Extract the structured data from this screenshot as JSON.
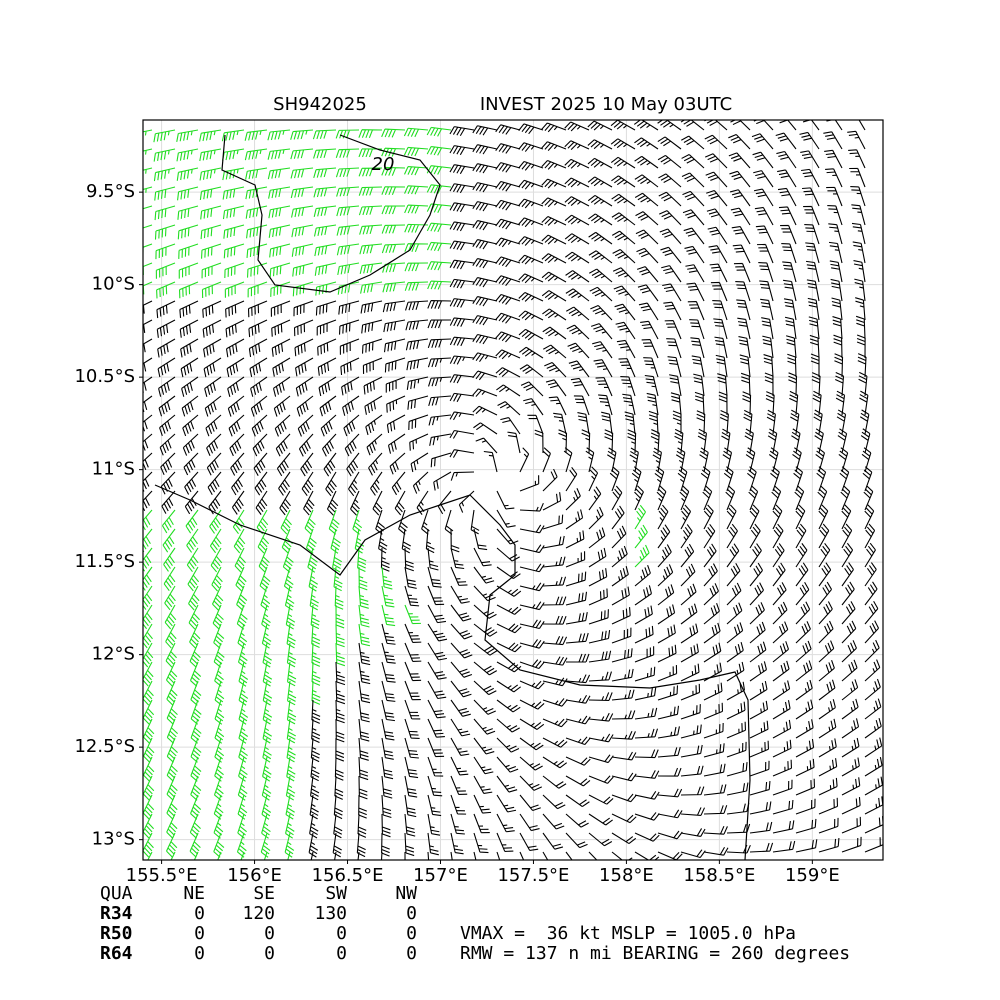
{
  "chart_data": {
    "type": "barbs",
    "title_left": "SH942025",
    "title_right": "INVEST 2025 10 May 03UTC",
    "xlim": [
      155.4,
      159.38
    ],
    "ylim": [
      -13.11,
      -9.11
    ],
    "xticks": [
      {
        "value": 155.5,
        "label": "155.5°E"
      },
      {
        "value": 156,
        "label": "156°E"
      },
      {
        "value": 156.5,
        "label": "156.5°E"
      },
      {
        "value": 157,
        "label": "157°E"
      },
      {
        "value": 157.5,
        "label": "157.5°E"
      },
      {
        "value": 158,
        "label": "158°E"
      },
      {
        "value": 158.5,
        "label": "158.5°E"
      },
      {
        "value": 159,
        "label": "159°E"
      }
    ],
    "yticks": [
      {
        "value": -9.5,
        "label": "9.5°S"
      },
      {
        "value": -10,
        "label": "10°S"
      },
      {
        "value": -10.5,
        "label": "10.5°S"
      },
      {
        "value": -11,
        "label": "11°S"
      },
      {
        "value": -11.5,
        "label": "11.5°S"
      },
      {
        "value": -12,
        "label": "12°S"
      },
      {
        "value": -12.5,
        "label": "12.5°S"
      },
      {
        "value": -13,
        "label": "13°S"
      }
    ],
    "grid": true,
    "contour_label": 20,
    "colors": {
      "strong": "#22dd22",
      "weak": "#000000"
    }
  },
  "table": {
    "header": [
      "QUA",
      "NE",
      "SE",
      "SW",
      "NW"
    ],
    "rows": [
      [
        "R34",
        0,
        120,
        130,
        0
      ],
      [
        "R50",
        0,
        0,
        0,
        0
      ],
      [
        "R64",
        0,
        0,
        0,
        0
      ]
    ]
  },
  "info": [
    "VMAX =  36 kt MSLP = 1005.0 hPa",
    "RMW = 137 n mi BEARING = 260 degrees"
  ]
}
